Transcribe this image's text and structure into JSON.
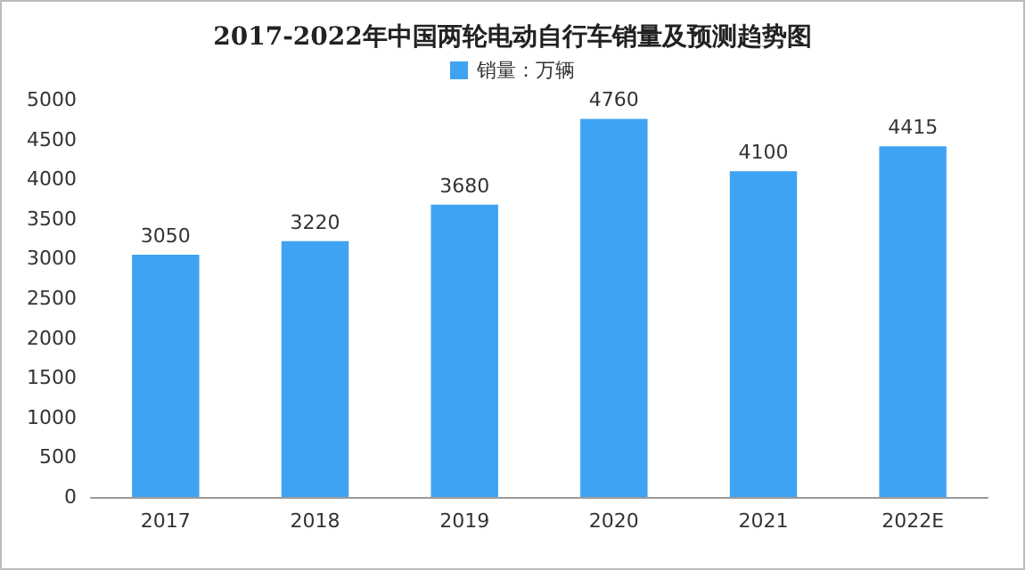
{
  "chart_data": {
    "type": "bar",
    "title": "2017-2022年中国两轮电动自行车销量及预测趋势图",
    "categories": [
      "2017",
      "2018",
      "2019",
      "2020",
      "2021",
      "2022E"
    ],
    "series": [
      {
        "name": "销量：万辆",
        "color": "#3fa3f4",
        "values": [
          3050,
          3220,
          3680,
          4760,
          4100,
          4415
        ]
      }
    ],
    "ylim": [
      0,
      5000
    ],
    "yticks": [
      0,
      500,
      1000,
      1500,
      2000,
      2500,
      3000,
      3500,
      4000,
      4500,
      5000
    ],
    "grid": false,
    "legend": "top",
    "data_labels": true
  }
}
